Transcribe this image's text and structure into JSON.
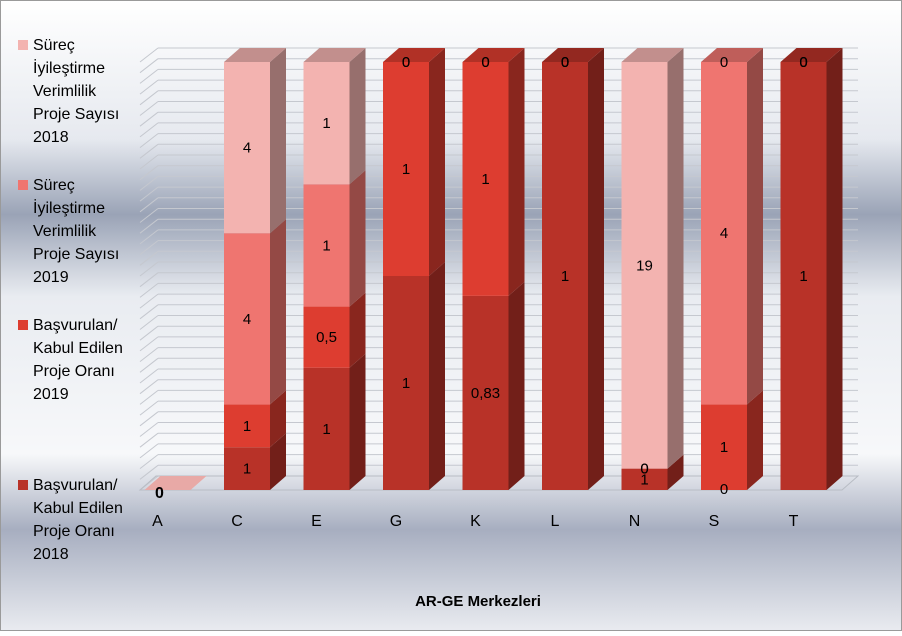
{
  "chart_data": {
    "type": "bar",
    "stacked": true,
    "view": "3d",
    "categories": [
      "A",
      "C",
      "E",
      "G",
      "K",
      "L",
      "N",
      "S",
      "T"
    ],
    "series": [
      {
        "name": "Başvurulan/ Kabul Edilen Proje Oranı 2018",
        "color": "#b83228",
        "values": [
          0,
          1,
          1,
          1,
          0.83,
          1,
          1,
          0,
          1
        ],
        "labels": [
          "0",
          "1",
          "1",
          "1",
          "0,83",
          "1",
          "1",
          "0",
          "1"
        ]
      },
      {
        "name": "Başvurulan/ Kabul Edilen Proje Oranı 2019",
        "color": "#dd3d30",
        "values": [
          0,
          1,
          0.5,
          1,
          1,
          0,
          0,
          1,
          0
        ],
        "labels": [
          "0",
          "1",
          "0,5",
          "1",
          "1",
          "0",
          "0",
          "1",
          "0"
        ]
      },
      {
        "name": "Süreç İyileştirme Verimlilik Proje Sayısı 2019",
        "color": "#ef7570",
        "values": [
          0,
          4,
          1,
          0,
          0,
          0,
          0,
          4,
          0
        ],
        "labels": [
          "0",
          "4",
          "1",
          "0",
          "0",
          "0",
          "0",
          "4",
          "0"
        ]
      },
      {
        "name": "Süreç İyileştirme Verimlilik Proje Sayısı 2018",
        "color": "#f3b3b0",
        "values": [
          0,
          4,
          1,
          0,
          0,
          0,
          19,
          0,
          0
        ],
        "labels": [
          "0",
          "4",
          "1",
          "0",
          "0",
          "0",
          "19",
          "0",
          "0"
        ]
      }
    ],
    "xlabel": "AR-GE Merkezleri",
    "ylabel": "",
    "title": "",
    "normalized": true,
    "legend_position": "left",
    "grid": true
  }
}
